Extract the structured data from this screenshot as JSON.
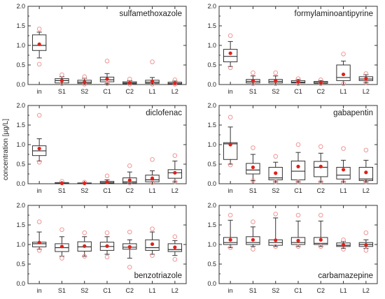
{
  "ylabel": "concentration [µg/L]",
  "colors": {
    "box_stroke": "#333333",
    "mean_fill": "#e0201b",
    "outlier_stroke": "#f08a8a",
    "text": "#222222"
  },
  "chart_data": [
    {
      "type": "box",
      "title": "sulfamethoxazole",
      "categories": [
        "in",
        "S1",
        "S2",
        "C1",
        "C2",
        "L1",
        "L2"
      ],
      "ylim": [
        0,
        2.0
      ],
      "yticks": [
        "0.0",
        "0.5",
        "1.0",
        "1.5",
        "2.0"
      ],
      "boxes": [
        {
          "q1": 0.87,
          "median": 1.0,
          "q3": 1.27,
          "whisker_low": 0.68,
          "whisker_high": 1.34,
          "mean": 1.03,
          "outliers": [
            1.42,
            0.52
          ]
        },
        {
          "q1": 0.04,
          "median": 0.1,
          "q3": 0.15,
          "whisker_low": 0.0,
          "whisker_high": 0.2,
          "mean": 0.1,
          "outliers": [
            0.25,
            0.02
          ]
        },
        {
          "q1": 0.03,
          "median": 0.06,
          "q3": 0.11,
          "whisker_low": 0.0,
          "whisker_high": 0.16,
          "mean": 0.06,
          "outliers": [
            0.2,
            0.01
          ]
        },
        {
          "q1": 0.07,
          "median": 0.12,
          "q3": 0.19,
          "whisker_low": 0.02,
          "whisker_high": 0.28,
          "mean": 0.14,
          "outliers": [
            0.6,
            0.02
          ]
        },
        {
          "q1": 0.02,
          "median": 0.04,
          "q3": 0.07,
          "whisker_low": 0.0,
          "whisker_high": 0.1,
          "mean": 0.04,
          "outliers": [
            0.14,
            0.01
          ]
        },
        {
          "q1": 0.03,
          "median": 0.06,
          "q3": 0.11,
          "whisker_low": 0.0,
          "whisker_high": 0.18,
          "mean": 0.08,
          "outliers": [
            0.58,
            0.01
          ]
        },
        {
          "q1": 0.01,
          "median": 0.03,
          "q3": 0.06,
          "whisker_low": 0.0,
          "whisker_high": 0.09,
          "mean": 0.03,
          "outliers": [
            0.12,
            0.01
          ]
        }
      ]
    },
    {
      "type": "box",
      "title": "formylaminoantipyrine",
      "categories": [
        "in",
        "S1",
        "S2",
        "C1",
        "C2",
        "L1",
        "L2"
      ],
      "ylim": [
        0,
        2.0
      ],
      "yticks": [
        "0.0",
        "0.5",
        "1.0",
        "1.5",
        "2.0"
      ],
      "boxes": [
        {
          "q1": 0.58,
          "median": 0.72,
          "q3": 0.9,
          "whisker_low": 0.46,
          "whisker_high": 1.1,
          "mean": 0.8,
          "outliers": [
            1.25,
            0.43
          ]
        },
        {
          "q1": 0.04,
          "median": 0.08,
          "q3": 0.13,
          "whisker_low": 0.0,
          "whisker_high": 0.22,
          "mean": 0.1,
          "outliers": [
            0.3,
            0.02
          ]
        },
        {
          "q1": 0.04,
          "median": 0.08,
          "q3": 0.13,
          "whisker_low": 0.0,
          "whisker_high": 0.22,
          "mean": 0.1,
          "outliers": [
            0.3,
            0.02
          ]
        },
        {
          "q1": 0.04,
          "median": 0.06,
          "q3": 0.1,
          "whisker_low": 0.0,
          "whisker_high": 0.13,
          "mean": 0.07,
          "outliers": [
            0.15,
            0.02
          ]
        },
        {
          "q1": 0.03,
          "median": 0.05,
          "q3": 0.08,
          "whisker_low": 0.0,
          "whisker_high": 0.1,
          "mean": 0.05,
          "outliers": [
            0.12,
            0.02
          ]
        },
        {
          "q1": 0.1,
          "median": 0.18,
          "q3": 0.5,
          "whisker_low": 0.0,
          "whisker_high": 0.6,
          "mean": 0.26,
          "outliers": [
            0.78,
            0.02
          ]
        },
        {
          "q1": 0.1,
          "median": 0.14,
          "q3": 0.2,
          "whisker_low": 0.05,
          "whisker_high": 0.25,
          "mean": 0.15,
          "outliers": [
            0.28,
            0.05
          ]
        }
      ]
    },
    {
      "type": "box",
      "title": "diclofenac",
      "categories": [
        "in",
        "S1",
        "S2",
        "C1",
        "C2",
        "L1",
        "L2"
      ],
      "ylim": [
        0,
        2.0
      ],
      "yticks": [
        "0.0",
        "0.5",
        "1.0",
        "1.5",
        "2.0"
      ],
      "boxes": [
        {
          "q1": 0.72,
          "median": 0.84,
          "q3": 0.97,
          "whisker_low": 0.58,
          "whisker_high": 1.15,
          "mean": 0.9,
          "outliers": [
            1.75,
            0.55
          ]
        },
        {
          "q1": 0.0,
          "median": 0.01,
          "q3": 0.03,
          "whisker_low": 0.0,
          "whisker_high": 0.04,
          "mean": 0.01,
          "outliers": [
            0.06
          ]
        },
        {
          "q1": 0.0,
          "median": 0.01,
          "q3": 0.02,
          "whisker_low": 0.0,
          "whisker_high": 0.03,
          "mean": 0.01,
          "outliers": [
            0.04
          ]
        },
        {
          "q1": 0.01,
          "median": 0.03,
          "q3": 0.06,
          "whisker_low": 0.0,
          "whisker_high": 0.1,
          "mean": 0.04,
          "outliers": [
            0.2
          ]
        },
        {
          "q1": 0.02,
          "median": 0.05,
          "q3": 0.15,
          "whisker_low": 0.0,
          "whisker_high": 0.3,
          "mean": 0.09,
          "outliers": [
            0.46,
            0.02
          ]
        },
        {
          "q1": 0.05,
          "median": 0.1,
          "q3": 0.22,
          "whisker_low": 0.0,
          "whisker_high": 0.33,
          "mean": 0.14,
          "outliers": [
            0.62,
            0.03
          ]
        },
        {
          "q1": 0.14,
          "median": 0.28,
          "q3": 0.36,
          "whisker_low": 0.05,
          "whisker_high": 0.58,
          "mean": 0.28,
          "outliers": [
            0.72,
            0.05
          ]
        }
      ]
    },
    {
      "type": "box",
      "title": "gabapentin",
      "categories": [
        "in",
        "S1",
        "S2",
        "C1",
        "C2",
        "L1",
        "L2"
      ],
      "ylim": [
        0,
        2.0
      ],
      "yticks": [
        "0.0",
        "0.5",
        "1.0",
        "1.5",
        "2.0"
      ],
      "boxes": [
        {
          "q1": 0.62,
          "median": 1.02,
          "q3": 1.05,
          "whisker_low": 0.5,
          "whisker_high": 1.45,
          "mean": 1.0,
          "outliers": [
            1.7,
            0.48
          ]
        },
        {
          "q1": 0.25,
          "median": 0.35,
          "q3": 0.52,
          "whisker_low": 0.08,
          "whisker_high": 0.75,
          "mean": 0.42,
          "outliers": [
            0.92,
            0.08
          ]
        },
        {
          "q1": 0.1,
          "median": 0.15,
          "q3": 0.42,
          "whisker_low": 0.05,
          "whisker_high": 0.55,
          "mean": 0.27,
          "outliers": [
            0.7,
            0.05
          ]
        },
        {
          "q1": 0.1,
          "median": 0.32,
          "q3": 0.58,
          "whisker_low": 0.05,
          "whisker_high": 0.8,
          "mean": 0.44,
          "outliers": [
            1.0,
            0.05
          ]
        },
        {
          "q1": 0.18,
          "median": 0.42,
          "q3": 0.57,
          "whisker_low": 0.05,
          "whisker_high": 0.78,
          "mean": 0.44,
          "outliers": [
            0.95,
            0.05
          ]
        },
        {
          "q1": 0.12,
          "median": 0.22,
          "q3": 0.42,
          "whisker_low": 0.05,
          "whisker_high": 0.6,
          "mean": 0.36,
          "outliers": [
            0.9,
            0.05
          ]
        },
        {
          "q1": 0.08,
          "median": 0.12,
          "q3": 0.42,
          "whisker_low": 0.05,
          "whisker_high": 0.6,
          "mean": 0.29,
          "outliers": [
            0.86,
            0.05
          ]
        }
      ]
    },
    {
      "type": "box",
      "title": "benzotriazole",
      "categories": [
        "in",
        "S1",
        "S2",
        "C1",
        "C2",
        "L1",
        "L2"
      ],
      "ylim": [
        0,
        2.0
      ],
      "yticks": [
        "0.0",
        "0.5",
        "1.0",
        "1.5",
        "2.0"
      ],
      "boxes": [
        {
          "q1": 0.94,
          "median": 1.02,
          "q3": 1.06,
          "whisker_low": 0.88,
          "whisker_high": 1.32,
          "mean": 1.05,
          "outliers": [
            1.58,
            0.85
          ]
        },
        {
          "q1": 0.82,
          "median": 0.92,
          "q3": 1.02,
          "whisker_low": 0.7,
          "whisker_high": 1.2,
          "mean": 0.95,
          "outliers": [
            1.38,
            0.65
          ]
        },
        {
          "q1": 0.83,
          "median": 0.94,
          "q3": 1.07,
          "whisker_low": 0.7,
          "whisker_high": 1.2,
          "mean": 0.96,
          "outliers": [
            1.3,
            0.7
          ]
        },
        {
          "q1": 0.85,
          "median": 0.95,
          "q3": 1.06,
          "whisker_low": 0.75,
          "whisker_high": 1.2,
          "mean": 0.96,
          "outliers": [
            1.3,
            0.68
          ]
        },
        {
          "q1": 0.88,
          "median": 0.93,
          "q3": 1.02,
          "whisker_low": 0.65,
          "whisker_high": 1.12,
          "mean": 0.94,
          "outliers": [
            1.32,
            0.42
          ]
        },
        {
          "q1": 0.85,
          "median": 0.92,
          "q3": 1.12,
          "whisker_low": 0.75,
          "whisker_high": 1.32,
          "mean": 1.01,
          "outliers": [
            1.4,
            0.72
          ]
        },
        {
          "q1": 0.82,
          "median": 0.87,
          "q3": 1.02,
          "whisker_low": 0.72,
          "whisker_high": 1.1,
          "mean": 0.93,
          "outliers": [
            1.2,
            0.62
          ]
        }
      ]
    },
    {
      "type": "box",
      "title": "carbamazepine",
      "categories": [
        "in",
        "S1",
        "S2",
        "C1",
        "C2",
        "L1",
        "L2"
      ],
      "ylim": [
        0,
        2.0
      ],
      "yticks": [
        "0.0",
        "0.5",
        "1.0",
        "1.5",
        "2.0"
      ],
      "boxes": [
        {
          "q1": 1.0,
          "median": 1.05,
          "q3": 1.18,
          "whisker_low": 0.92,
          "whisker_high": 1.62,
          "mean": 1.12,
          "outliers": [
            1.75,
            0.92
          ]
        },
        {
          "q1": 1.0,
          "median": 1.05,
          "q3": 1.2,
          "whisker_low": 0.95,
          "whisker_high": 1.45,
          "mean": 1.12,
          "outliers": [
            1.58,
            0.88
          ]
        },
        {
          "q1": 0.98,
          "median": 1.05,
          "q3": 1.12,
          "whisker_low": 0.95,
          "whisker_high": 1.68,
          "mean": 1.11,
          "outliers": [
            1.78,
            0.95
          ]
        },
        {
          "q1": 1.0,
          "median": 1.05,
          "q3": 1.18,
          "whisker_low": 0.95,
          "whisker_high": 1.6,
          "mean": 1.1,
          "outliers": [
            1.75,
            0.95
          ]
        },
        {
          "q1": 1.0,
          "median": 1.03,
          "q3": 1.18,
          "whisker_low": 0.95,
          "whisker_high": 1.6,
          "mean": 1.12,
          "outliers": [
            1.75,
            0.95
          ]
        },
        {
          "q1": 0.95,
          "median": 0.98,
          "q3": 1.04,
          "whisker_low": 0.9,
          "whisker_high": 1.08,
          "mean": 0.99,
          "outliers": [
            1.12,
            0.88
          ]
        },
        {
          "q1": 0.95,
          "median": 1.0,
          "q3": 1.05,
          "whisker_low": 0.9,
          "whisker_high": 1.12,
          "mean": 0.99,
          "outliers": [
            1.3,
            0.85
          ]
        }
      ]
    }
  ]
}
